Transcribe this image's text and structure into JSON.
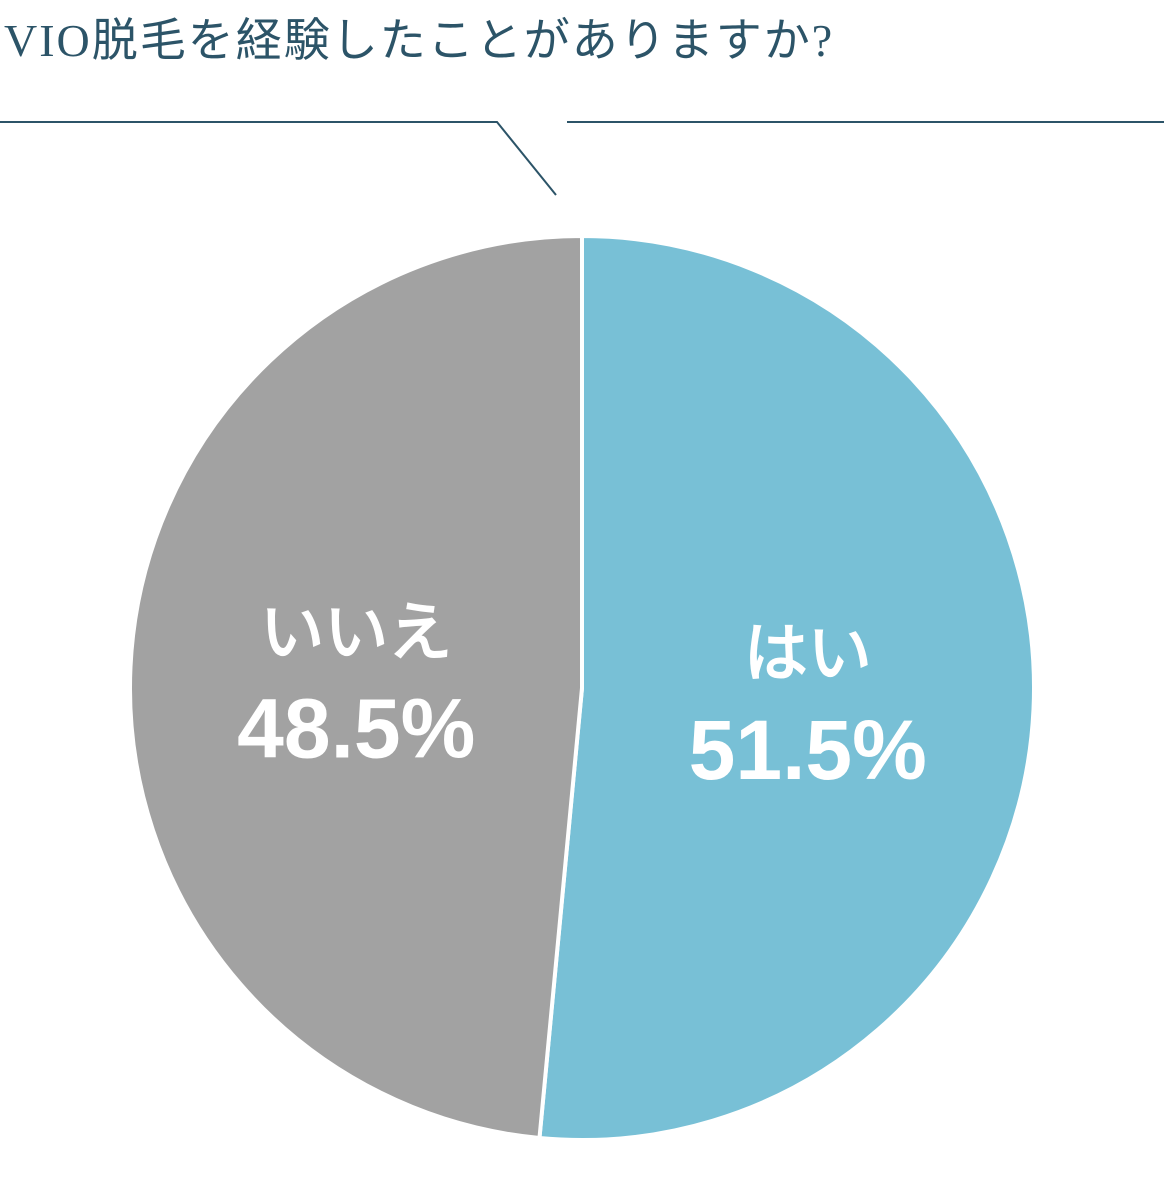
{
  "chart_data": {
    "type": "pie",
    "title": "VIO脱毛を経験したことがありますか?",
    "categories": [
      "はい",
      "いいえ"
    ],
    "values": [
      51.5,
      48.5
    ],
    "value_labels": [
      "51.5%",
      "48.5%"
    ],
    "colors": [
      "#78c0d6",
      "#a2a2a2"
    ]
  }
}
